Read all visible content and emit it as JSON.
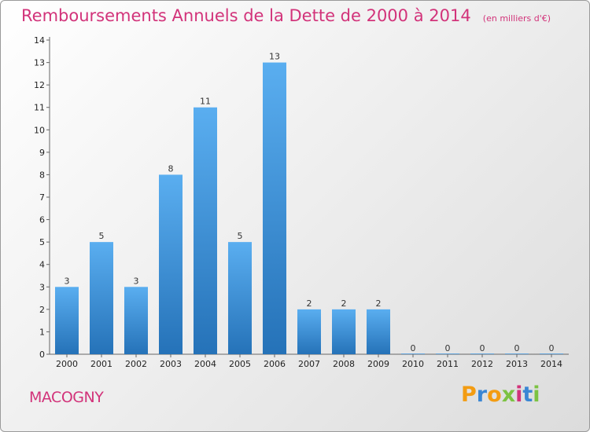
{
  "header": {
    "title": "Remboursements Annuels de la Dette de 2000 à 2014",
    "unit": "(en milliers d'€)"
  },
  "footer": {
    "commune": "MACOGNY",
    "brand": "Proxiti",
    "brand_letters": [
      "P",
      "r",
      "o",
      "x",
      "i",
      "t",
      "i"
    ],
    "brand_colors": [
      "#f39c12",
      "#3a86d4",
      "#f39c12",
      "#7cc242",
      "#d2337a",
      "#3a86d4",
      "#7cc242"
    ]
  },
  "chart_data": {
    "type": "bar",
    "categories": [
      "2000",
      "2001",
      "2002",
      "2003",
      "2004",
      "2005",
      "2006",
      "2007",
      "2008",
      "2009",
      "2010",
      "2011",
      "2012",
      "2013",
      "2014"
    ],
    "values": [
      3,
      5,
      3,
      8,
      11,
      5,
      13,
      2,
      2,
      2,
      0,
      0,
      0,
      0,
      0
    ],
    "ylim": [
      0,
      14
    ],
    "yticks": [
      0,
      1,
      2,
      3,
      4,
      5,
      6,
      7,
      8,
      9,
      10,
      11,
      12,
      13,
      14
    ],
    "bar_color": "#3b8fd6",
    "grid": false,
    "data_labels": true
  }
}
